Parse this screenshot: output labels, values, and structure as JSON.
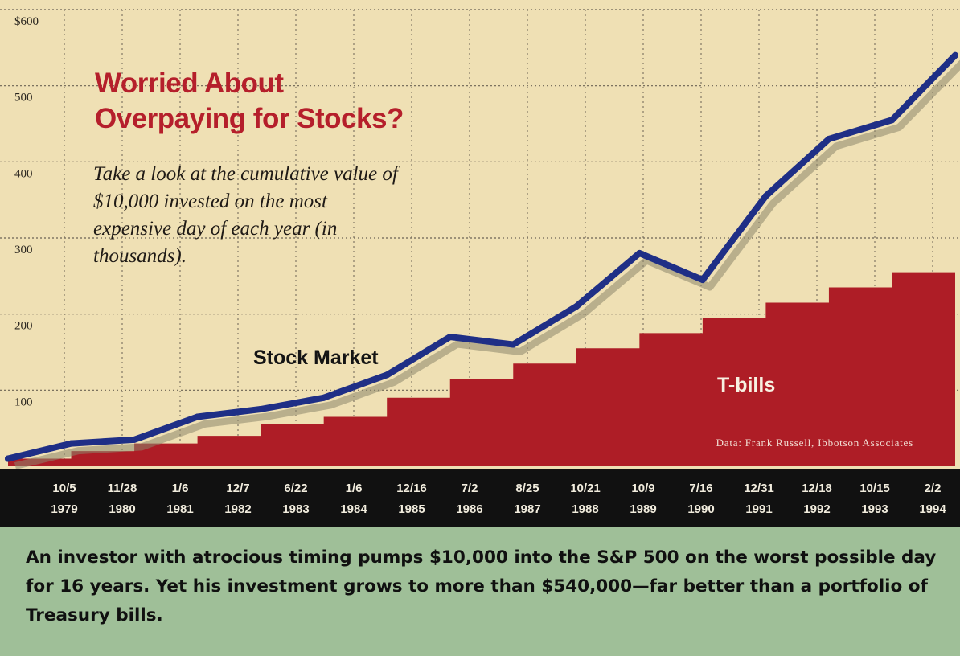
{
  "headline": {
    "title": "Worried About Overpaying for Stocks?",
    "subtitle": "Take a look at the cumulative value of $10,000 invested on the most expensive day of each year (in thousands)."
  },
  "caption": "An investor with atrocious timing pumps $10,000 into the S&P 500 on the worst possible day for 16 years. Yet his investment grows to more than $540,000—far better than a portfolio of Treasury bills.",
  "colors": {
    "background": "#efe0b4",
    "stock_line": "#1f2f86",
    "stock_shadow": "#8d876b",
    "tbills_fill": "#ae1d26",
    "axis_band": "#111111",
    "caption_band": "#9fbf98",
    "tick_text": "#f1ecdd"
  },
  "chart_data": {
    "type": "area",
    "title": "Worried About Overpaying for Stocks?",
    "subtitle": "Take a look at the cumulative value of $10,000 invested on the most expensive day of each year (in thousands).",
    "ylabel": "",
    "xlabel": "",
    "ylim": [
      0,
      600
    ],
    "y_ticks": [
      "$600",
      "500",
      "400",
      "300",
      "200",
      "100"
    ],
    "x_ticks": [
      {
        "date": "10/5",
        "year": "1979"
      },
      {
        "date": "11/28",
        "year": "1980"
      },
      {
        "date": "1/6",
        "year": "1981"
      },
      {
        "date": "12/7",
        "year": "1982"
      },
      {
        "date": "6/22",
        "year": "1983"
      },
      {
        "date": "1/6",
        "year": "1984"
      },
      {
        "date": "12/16",
        "year": "1985"
      },
      {
        "date": "7/2",
        "year": "1986"
      },
      {
        "date": "8/25",
        "year": "1987"
      },
      {
        "date": "10/21",
        "year": "1988"
      },
      {
        "date": "10/9",
        "year": "1989"
      },
      {
        "date": "7/16",
        "year": "1990"
      },
      {
        "date": "12/31",
        "year": "1991"
      },
      {
        "date": "12/18",
        "year": "1992"
      },
      {
        "date": "10/15",
        "year": "1993"
      },
      {
        "date": "2/2",
        "year": "1994"
      }
    ],
    "grid": true,
    "source": "Data: Frank Russell, Ibbotson Associates",
    "series": [
      {
        "name": "Stock Market",
        "kind": "line",
        "x": [
          "10/5/1979",
          "11/28/1980",
          "1/6/1981",
          "12/7/1982",
          "6/22/1983",
          "1/6/1984",
          "12/16/1985",
          "7/2/1986",
          "8/25/1987",
          "10/21/1988",
          "10/9/1989",
          "7/16/1990",
          "12/31/1991",
          "12/18/1992",
          "10/15/1993",
          "2/2/1994"
        ],
        "values": [
          10,
          30,
          35,
          65,
          75,
          90,
          120,
          170,
          160,
          210,
          280,
          245,
          355,
          430,
          455,
          540
        ]
      },
      {
        "name": "T-bills",
        "kind": "area",
        "x": [
          "10/5/1979",
          "11/28/1980",
          "1/6/1981",
          "12/7/1982",
          "6/22/1983",
          "1/6/1984",
          "12/16/1985",
          "7/2/1986",
          "8/25/1987",
          "10/21/1988",
          "10/9/1989",
          "7/16/1990",
          "12/31/1991",
          "12/18/1992",
          "10/15/1993",
          "2/2/1994"
        ],
        "values": [
          10,
          20,
          30,
          40,
          55,
          65,
          90,
          115,
          135,
          155,
          175,
          195,
          215,
          235,
          255,
          275
        ]
      }
    ]
  }
}
